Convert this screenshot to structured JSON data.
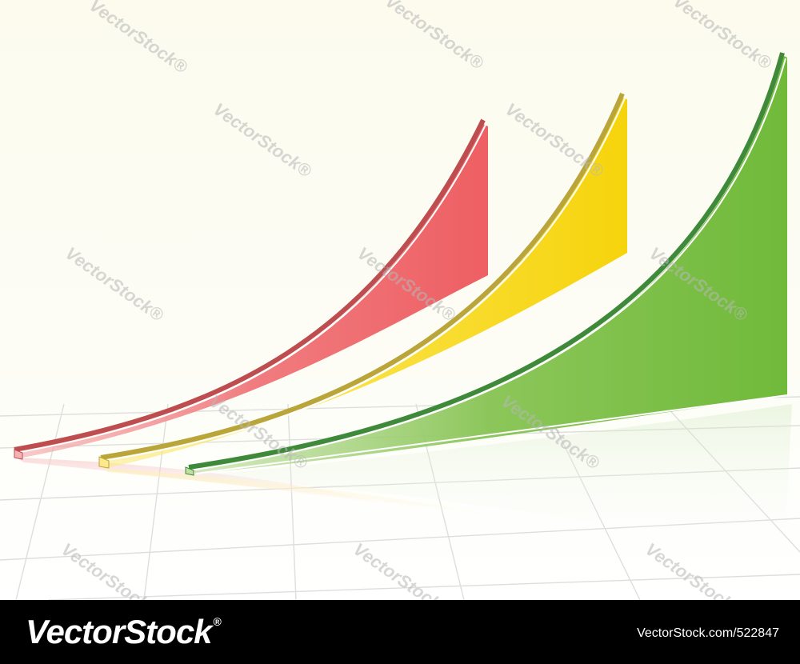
{
  "footer": {
    "logo_text": "VectorStock",
    "logo_mark": "®",
    "image_id": "VectorStock.com/522847"
  },
  "watermark": {
    "text": "VectorStock®"
  },
  "colors": {
    "background_top": "#fdfdf2",
    "background_bottom": "#ffffff",
    "grid_line": "#dcdcdc",
    "red_fill": "#ef6266",
    "red_edge": "#bd4d4f",
    "yellow_fill": "#f8d816",
    "yellow_edge": "#b9a53a",
    "green_fill": "#76bd3e",
    "green_edge": "#3f8a3a",
    "footer_bg": "#000000",
    "footer_text": "#ffffff"
  },
  "icons": [
    "vectorstock-logo"
  ]
}
